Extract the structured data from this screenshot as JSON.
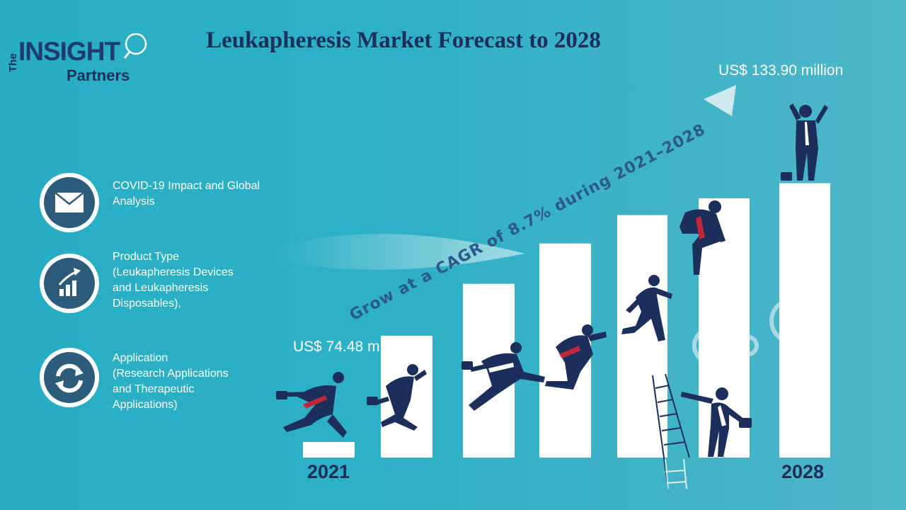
{
  "logo": {
    "the": "The",
    "insight": "INSIGHT",
    "partners": "Partners"
  },
  "title": "Leukapheresis Market Forecast to 2028",
  "legend": [
    {
      "icon": "envelope-icon",
      "text": "COVID-19 Impact and Global Analysis"
    },
    {
      "icon": "growth-chart-icon",
      "lines": [
        "Product Type",
        "(Leukapheresis Devices",
        "and Leukapheresis",
        "Disposables),"
      ]
    },
    {
      "icon": "cycle-arrows-icon",
      "lines": [
        "Application",
        "(Research Applications",
        "and Therapeutic",
        "Applications)"
      ]
    }
  ],
  "chart_data": {
    "type": "bar",
    "categories": [
      "2021",
      "",
      "",
      "",
      "",
      "",
      "2028"
    ],
    "values": [
      74.48,
      99.5,
      111.2,
      120.3,
      126.7,
      130.5,
      133.9
    ],
    "annotations": {
      "start_value_label": "US$ 74.48 million",
      "end_value_label": "US$ 133.90 million",
      "start_year": "2021",
      "end_year": "2028",
      "cagr_text": "Grow at a CAGR of 8.7% during 2021–2028"
    },
    "ylim": [
      70,
      140
    ],
    "grid": false,
    "colors": {
      "bar": "#ffffff",
      "figure": "#1b2f5a",
      "tie": "#c0283a"
    }
  }
}
